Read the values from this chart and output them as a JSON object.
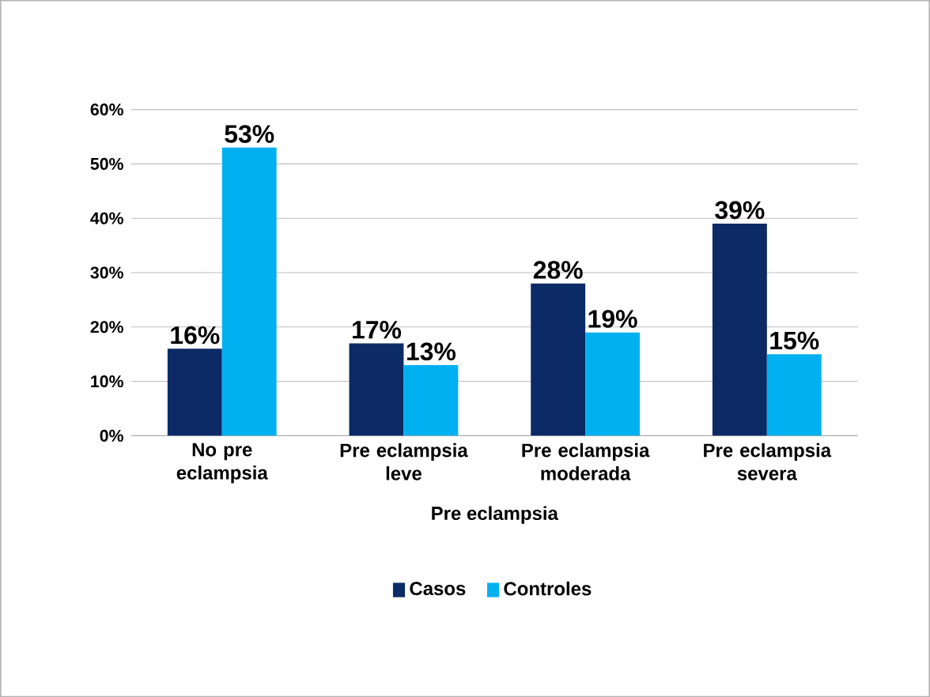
{
  "chart_data": {
    "type": "bar",
    "xlabel": "Pre eclampsia",
    "categories": [
      "No pre eclampsia",
      "Pre eclampsia leve",
      "Pre eclampsia moderada",
      "Pre eclampsia severa"
    ],
    "series": [
      {
        "name": "Casos",
        "color": "#0c2a66",
        "values": [
          16,
          17,
          28,
          39
        ],
        "value_labels": [
          "16%",
          "17%",
          "28%",
          "39%"
        ]
      },
      {
        "name": "Controles",
        "color": "#00b0f0",
        "values": [
          53,
          13,
          19,
          15
        ],
        "value_labels": [
          "53%",
          "13%",
          "19%",
          "15%"
        ]
      }
    ],
    "ylim": [
      0,
      60
    ],
    "yticks": [
      {
        "value": 0,
        "label": "0%"
      },
      {
        "value": 10,
        "label": "10%"
      },
      {
        "value": 20,
        "label": "20%"
      },
      {
        "value": 30,
        "label": "30%"
      },
      {
        "value": 40,
        "label": "40%"
      },
      {
        "value": 50,
        "label": "50%"
      },
      {
        "value": 60,
        "label": "60%"
      }
    ],
    "grid": "y",
    "legend": "bottom"
  }
}
